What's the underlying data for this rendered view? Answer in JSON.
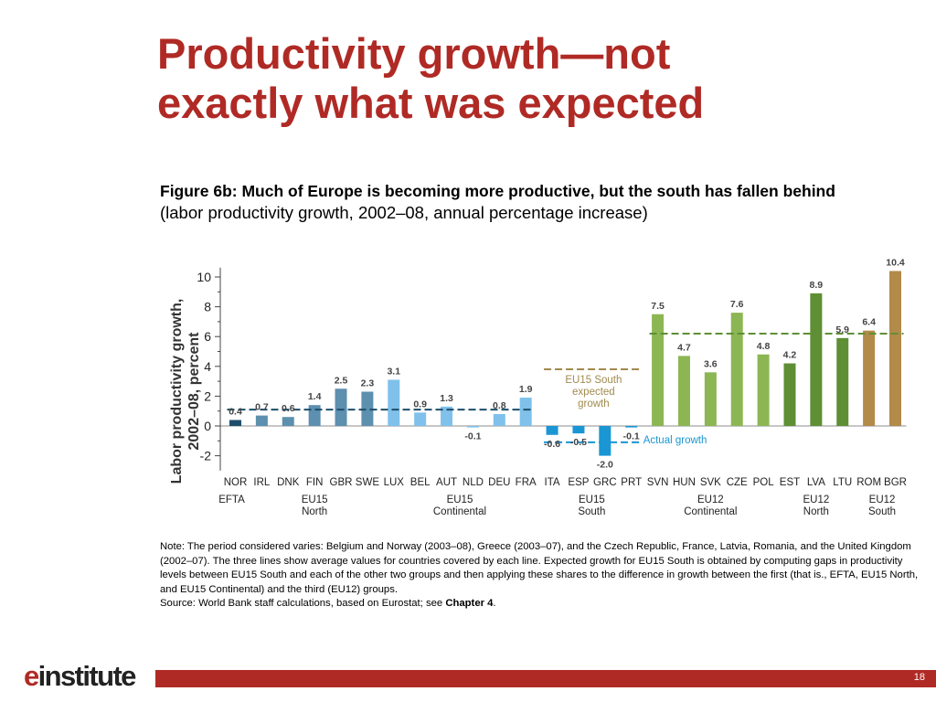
{
  "slide": {
    "title_line1": "Productivity growth—not",
    "title_line2": "exactly what was expected",
    "page_number": "18",
    "logo_e": "e",
    "logo_rest": "institute"
  },
  "figure": {
    "caption_bold": "Figure 6b: Much of Europe is becoming more productive, but the south has fallen behind",
    "caption_sub": "(labor productivity growth, 2002–08, annual percentage increase)"
  },
  "note": {
    "text": "Note: The period considered varies: Belgium and Norway (2003–08), Greece (2003–07), and the Czech Republic, France, Latvia, Romania, and the United Kingdom (2002–07). The three lines show average values for countries covered by each line. Expected growth for EU15 South is obtained by computing gaps in productivity levels between EU15 South and each of the other two groups and then applying these shares to the difference in growth between the first (that is., EFTA, EU15 North, and EU15 Continental) and the third (EU12) groups.",
    "source_prefix": "Source: World Bank staff calculations, based on Eurostat; see ",
    "source_ref": "Chapter 4",
    "source_suffix": "."
  },
  "chart_data": {
    "type": "bar",
    "ylabel_line1": "Labor productivity growth,",
    "ylabel_line2": "2002–08, percent",
    "ylim": [
      -3,
      11
    ],
    "yticks": [
      -2,
      0,
      2,
      4,
      6,
      8,
      10
    ],
    "categories": [
      "NOR",
      "IRL",
      "DNK",
      "FIN",
      "GBR",
      "SWE",
      "LUX",
      "BEL",
      "AUT",
      "NLD",
      "DEU",
      "FRA",
      "ITA",
      "ESP",
      "GRC",
      "PRT",
      "SVN",
      "HUN",
      "SVK",
      "CZE",
      "POL",
      "EST",
      "LVA",
      "LTU",
      "ROM",
      "BGR"
    ],
    "values": [
      0.4,
      0.7,
      0.6,
      1.4,
      2.5,
      2.3,
      3.1,
      0.9,
      1.3,
      -0.1,
      0.8,
      1.9,
      -0.6,
      -0.5,
      -2.0,
      -0.1,
      7.5,
      4.7,
      3.6,
      7.6,
      4.8,
      4.2,
      8.9,
      5.9,
      6.4,
      10.4
    ],
    "value_labels": [
      "0.4",
      "0.7",
      "0.6",
      "1.4",
      "2.5",
      "2.3",
      "3.1",
      "0.9",
      "1.3",
      "-0.1",
      "0.8",
      "1.9",
      "-0.6",
      "-0.5",
      "-2.0",
      "-0.1",
      "7.5",
      "4.7",
      "3.6",
      "7.6",
      "4.8",
      "4.2",
      "8.9",
      "5.9",
      "6.4",
      "10.4"
    ],
    "colors": [
      "#1d4e6b",
      "#5d8fae",
      "#5d8fae",
      "#5d8fae",
      "#5d8fae",
      "#5d8fae",
      "#7fc1ea",
      "#7fc1ea",
      "#7fc1ea",
      "#7fc1ea",
      "#7fc1ea",
      "#7fc1ea",
      "#1a96d4",
      "#1a96d4",
      "#1a96d4",
      "#1a96d4",
      "#8cb653",
      "#8cb653",
      "#8cb653",
      "#8cb653",
      "#8cb653",
      "#5e8f34",
      "#5e8f34",
      "#5e8f34",
      "#b28a4a",
      "#b28a4a"
    ],
    "groups": [
      {
        "line1": "EFTA",
        "line2": "",
        "start": 0,
        "end": 0
      },
      {
        "line1": "EU15",
        "line2": "North",
        "start": 1,
        "end": 5
      },
      {
        "line1": "EU15",
        "line2": "Continental",
        "start": 6,
        "end": 11
      },
      {
        "line1": "EU15",
        "line2": "South",
        "start": 12,
        "end": 15
      },
      {
        "line1": "EU12",
        "line2": "Continental",
        "start": 16,
        "end": 20
      },
      {
        "line1": "EU12",
        "line2": "North",
        "start": 21,
        "end": 23
      },
      {
        "line1": "EU12",
        "line2": "South",
        "start": 24,
        "end": 25
      }
    ],
    "average_lines": [
      {
        "y": 1.1,
        "start": 0,
        "end": 11,
        "color": "#1d4e6b"
      },
      {
        "y": -1.1,
        "start": 12,
        "end": 15,
        "color": "#1a96d4"
      },
      {
        "y": 6.2,
        "start": 16,
        "end": 25,
        "color": "#5e8f34"
      },
      {
        "y": 3.8,
        "start": 12,
        "end": 15,
        "color": "#a08a4e"
      }
    ],
    "annotations": {
      "expected_line1": "EU15 South",
      "expected_line2": "expected",
      "expected_line3": "growth",
      "expected_color": "#a08a4e",
      "actual": "Actual growth",
      "actual_color": "#1a96d4"
    }
  }
}
